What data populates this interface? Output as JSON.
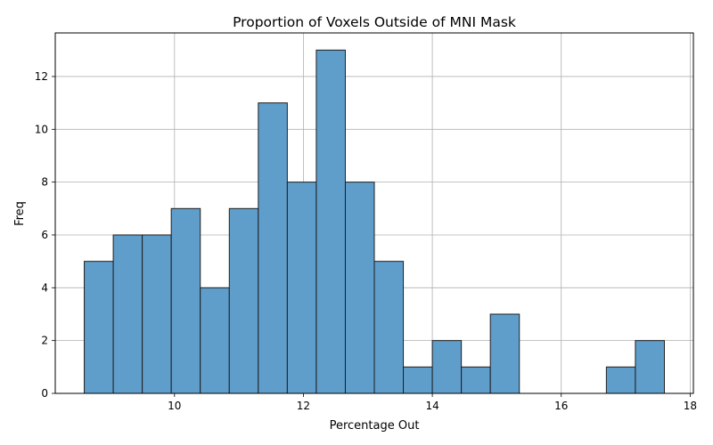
{
  "chart_data": {
    "type": "bar",
    "title": "Proportion of Voxels Outside of MNI Mask",
    "xlabel": "Percentage Out",
    "ylabel": "Freq",
    "bins": {
      "edges": [
        8.6,
        9.05,
        9.5,
        9.95,
        10.4,
        10.85,
        11.3,
        11.75,
        12.2,
        12.65,
        13.1,
        13.55,
        14.0,
        14.45,
        14.9,
        15.35,
        15.8,
        16.25,
        16.7,
        17.15,
        17.6
      ],
      "values": [
        5,
        6,
        6,
        7,
        4,
        7,
        11,
        8,
        13,
        8,
        5,
        1,
        2,
        1,
        3,
        0,
        0,
        0,
        1,
        2
      ]
    },
    "xlim": [
      8.15,
      18.05
    ],
    "ylim": [
      0,
      13.65
    ],
    "xticks": [
      10,
      12,
      14,
      16,
      18
    ],
    "yticks": [
      0,
      2,
      4,
      6,
      8,
      10,
      12
    ],
    "grid": true,
    "bar_color": "#5f9ecb",
    "edge_color": "#1f1f1f"
  }
}
